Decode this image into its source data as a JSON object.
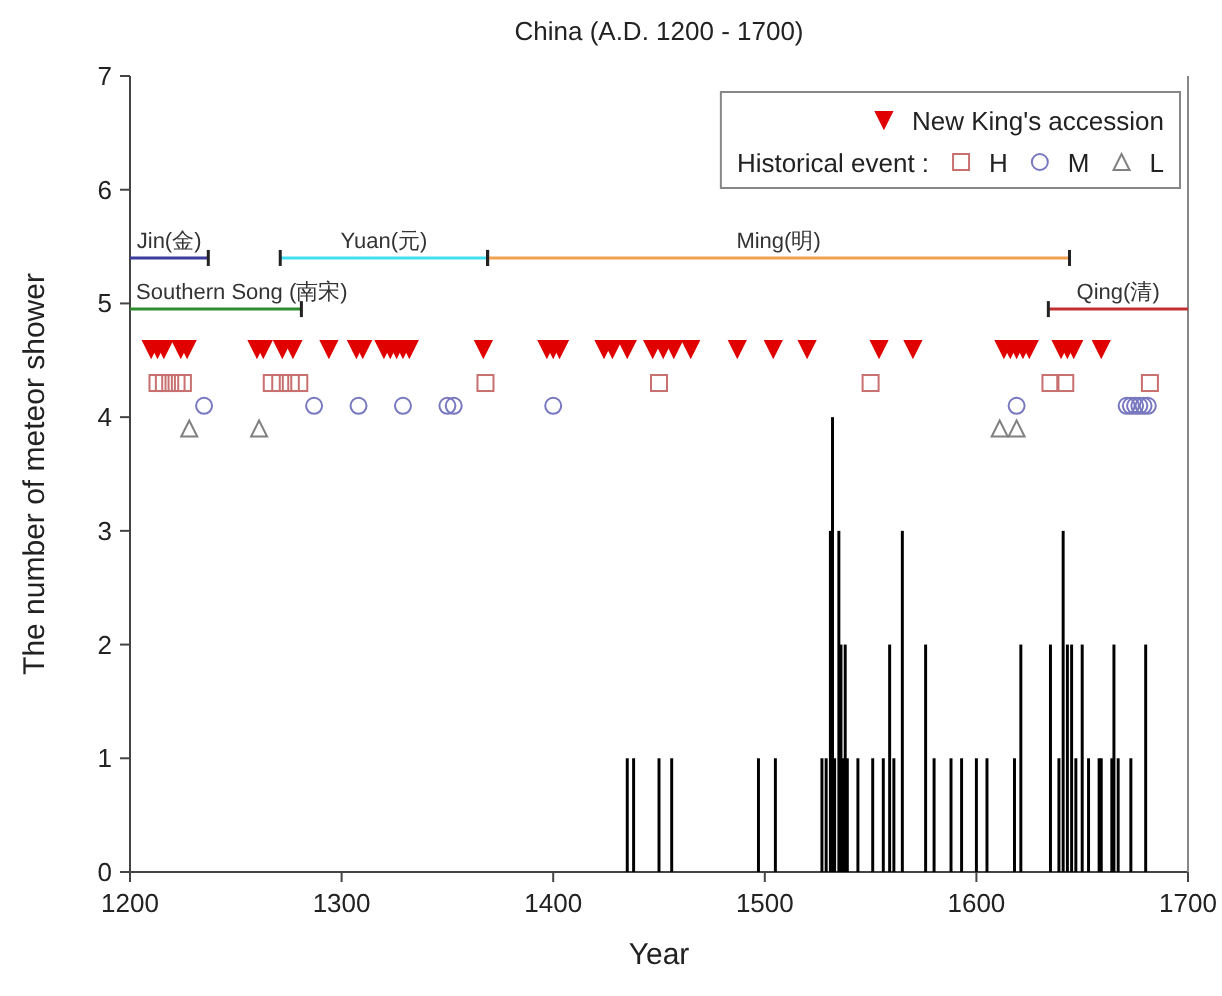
{
  "chart_data": {
    "type": "bar",
    "title": "China (A.D. 1200 - 1700)",
    "xlabel": "Year",
    "ylabel": "The number of meteor shower",
    "legend_title": "Historical event :",
    "xlim": [
      1200,
      1700
    ],
    "xticks": [
      1200,
      1300,
      1400,
      1500,
      1600,
      1700
    ],
    "ylim": [
      0,
      7
    ],
    "yticks": [
      0,
      1,
      2,
      3,
      4,
      5,
      6,
      7
    ],
    "grid": false,
    "legend": "top right",
    "series": [
      {
        "color": "#000000",
        "x": [
          1435,
          1438,
          1450,
          1456,
          1497,
          1505,
          1527,
          1529,
          1531,
          1532,
          1533,
          1535,
          1536,
          1537,
          1538,
          1539,
          1544,
          1551,
          1556,
          1559,
          1561,
          1565,
          1576,
          1580,
          1588,
          1593,
          1600,
          1605,
          1618,
          1621,
          1635,
          1639,
          1641,
          1643,
          1645,
          1647,
          1650,
          1653,
          1658,
          1659,
          1664,
          1665,
          1667,
          1673,
          1680
        ],
        "values": [
          1,
          1,
          1,
          1,
          1,
          1,
          1,
          1,
          3,
          4,
          1,
          3,
          2,
          1,
          2,
          1,
          1,
          1,
          1,
          2,
          1,
          3,
          2,
          1,
          1,
          1,
          1,
          1,
          1,
          2,
          2,
          1,
          3,
          2,
          2,
          1,
          2,
          1,
          1,
          1,
          1,
          2,
          1,
          1,
          2
        ]
      },
      {
        "type": "scatter",
        "name": "New King's accession",
        "color": "#e00000",
        "marker": "triangle-down",
        "x": [
          1210,
          1213,
          1216,
          1224,
          1227,
          1260,
          1263,
          1272,
          1277,
          1294,
          1307,
          1310,
          1320,
          1323,
          1326,
          1329,
          1332,
          1367,
          1397,
          1400,
          1403,
          1424,
          1428,
          1435,
          1447,
          1452,
          1457,
          1465,
          1487,
          1504,
          1520,
          1554,
          1570,
          1613,
          1616,
          1619,
          1622,
          1625,
          1640,
          1643,
          1646,
          1659
        ],
        "values": [
          4.6,
          4.6,
          4.6,
          4.6,
          4.6,
          4.6,
          4.6,
          4.6,
          4.6,
          4.6,
          4.6,
          4.6,
          4.6,
          4.6,
          4.6,
          4.6,
          4.6,
          4.6,
          4.6,
          4.6,
          4.6,
          4.6,
          4.6,
          4.6,
          4.6,
          4.6,
          4.6,
          4.6,
          4.6,
          4.6,
          4.6,
          4.6,
          4.6,
          4.6,
          4.6,
          4.6,
          4.6,
          4.6,
          4.6,
          4.6,
          4.6,
          4.6
        ]
      },
      {
        "type": "scatter",
        "name": "H",
        "color": "#c87070",
        "marker": "square",
        "x": [
          1213,
          1216,
          1219,
          1222,
          1225,
          1267,
          1271,
          1276,
          1280,
          1368,
          1450,
          1550,
          1635,
          1642,
          1682
        ],
        "values": [
          4.3,
          4.3,
          4.3,
          4.3,
          4.3,
          4.3,
          4.3,
          4.3,
          4.3,
          4.3,
          4.3,
          4.3,
          4.3,
          4.3,
          4.3
        ]
      },
      {
        "type": "scatter",
        "name": "M",
        "color": "#7878c0",
        "marker": "circle",
        "x": [
          1235,
          1287,
          1308,
          1329,
          1350,
          1353,
          1400,
          1619,
          1671,
          1673,
          1675,
          1677,
          1679,
          1681
        ],
        "values": [
          4.1,
          4.1,
          4.1,
          4.1,
          4.1,
          4.1,
          4.1,
          4.1,
          4.1,
          4.1,
          4.1,
          4.1,
          4.1,
          4.1
        ]
      },
      {
        "type": "scatter",
        "name": "L",
        "color": "#808080",
        "marker": "triangle",
        "x": [
          1228,
          1261,
          1611,
          1619
        ],
        "values": [
          3.9,
          3.9,
          3.9,
          3.9
        ]
      },
      {
        "type": "line",
        "name": "Jin(金)",
        "color": "#3c3c9c",
        "x": [
          1200,
          1237
        ],
        "values": [
          5.4,
          5.4
        ]
      },
      {
        "type": "line",
        "name": "Yuan(元)",
        "color": "#40e0f0",
        "x": [
          1271,
          1369
        ],
        "values": [
          5.4,
          5.4
        ]
      },
      {
        "type": "line",
        "name": "Ming(明)",
        "color": "#f0a050",
        "x": [
          1369,
          1644
        ],
        "values": [
          5.4,
          5.4
        ]
      },
      {
        "type": "line",
        "name": "Southern Song (南宋)",
        "color": "#2e8b2e",
        "x": [
          1200,
          1281
        ],
        "values": [
          4.95,
          4.95
        ]
      },
      {
        "type": "line",
        "name": "Qing(清)",
        "color": "#c03030",
        "x": [
          1634,
          1700
        ],
        "values": [
          4.95,
          4.95
        ]
      }
    ]
  }
}
